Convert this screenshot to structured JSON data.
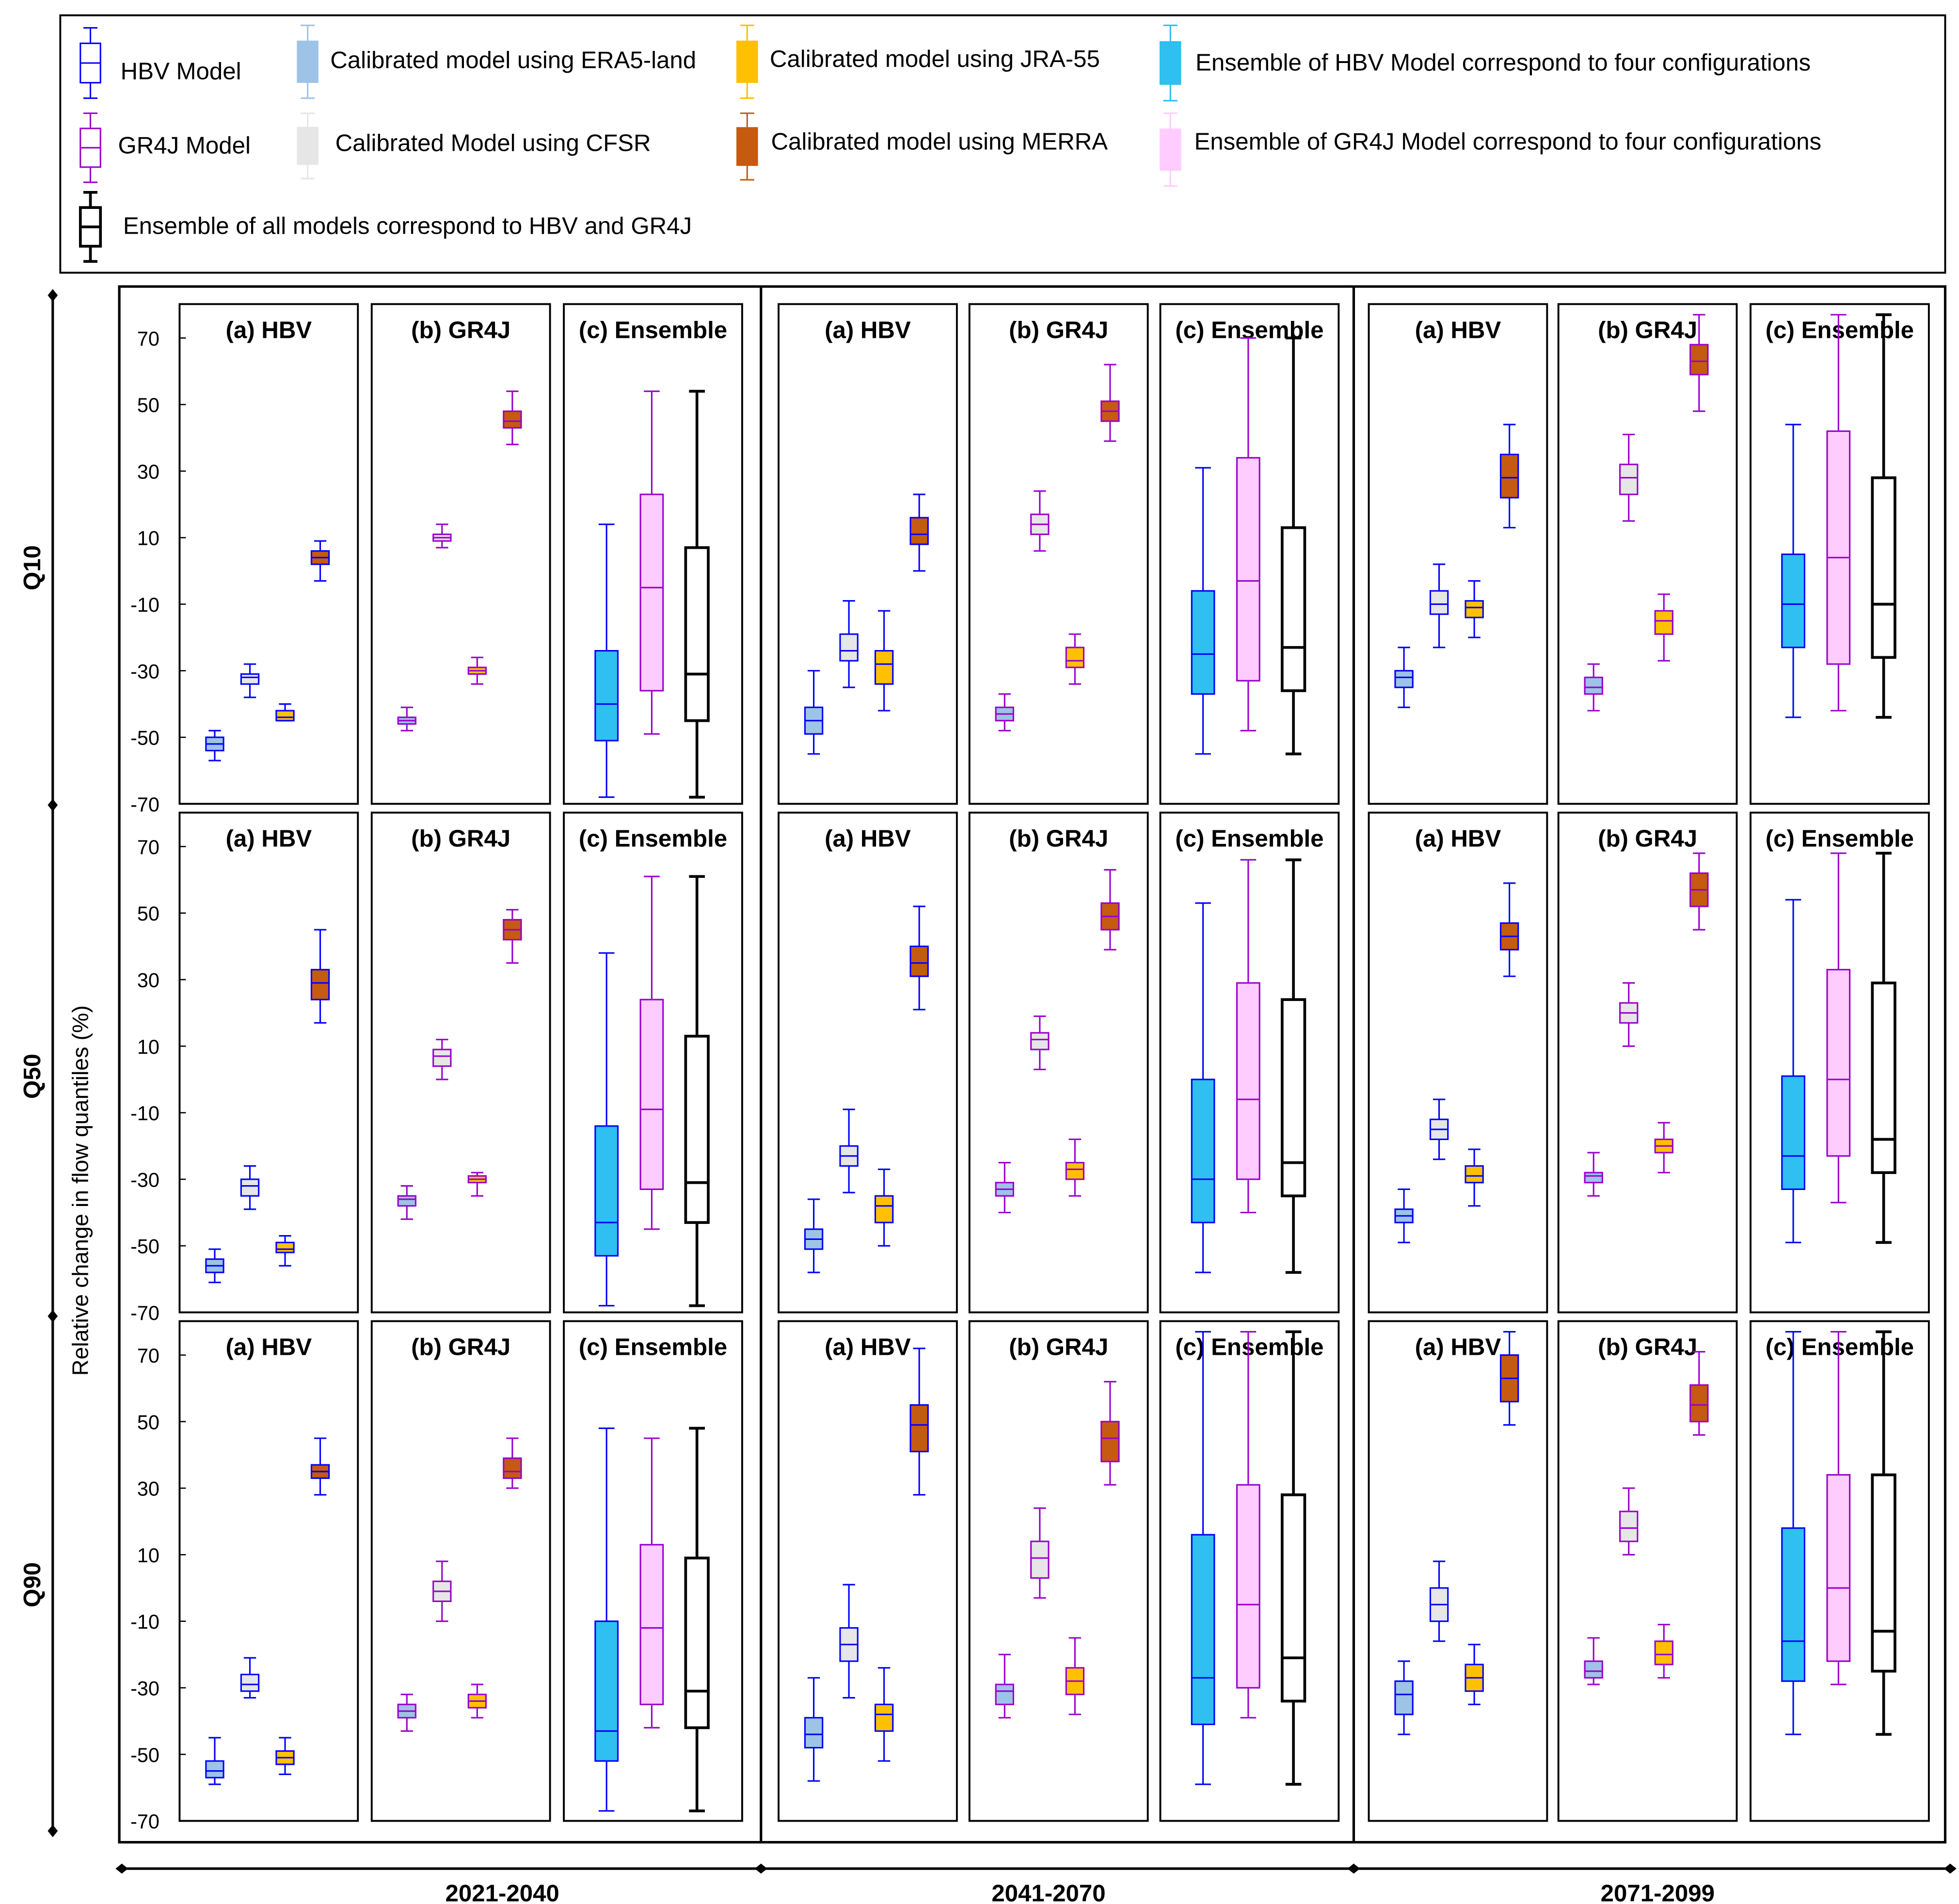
{
  "legend": {
    "items": [
      {
        "label": "HBV Model",
        "kind": "hbv"
      },
      {
        "label": "Calibrated model using ERA5-land",
        "kind": "era5"
      },
      {
        "label": "Calibrated model using JRA-55",
        "kind": "jra"
      },
      {
        "label": "Ensemble of HBV Model correspond to four configurations",
        "kind": "ensHBV"
      },
      {
        "label": "GR4J Model",
        "kind": "gr4j"
      },
      {
        "label": "Calibrated Model using CFSR",
        "kind": "cfsr"
      },
      {
        "label": "Calibrated model using MERRA",
        "kind": "merra"
      },
      {
        "label": "Ensemble of GR4J Model correspond to four configurations",
        "kind": "ensGR4J"
      },
      {
        "label": "Ensemble of all models correspond to HBV and GR4J",
        "kind": "ensAll"
      }
    ]
  },
  "colors": {
    "hbv": "#0000ff",
    "gr4j": "#9900cc",
    "era5": "#9dc3e6",
    "cfsr": "#e6e6e6",
    "jra": "#ffc000",
    "merra": "#c55a11",
    "ensHBV": "#2fbff0",
    "ensGR4J": "#ffccff",
    "ensAll": "#ffffff",
    "ensAllStroke": "#000000"
  },
  "chart_data": {
    "type": "box",
    "ylabel": "Relative change in flow quantiles (%)",
    "ylim": [
      -70,
      70
    ],
    "yticks": [
      70,
      50,
      30,
      10,
      -10,
      -30,
      -50,
      -70
    ],
    "quantiles": [
      "Q10",
      "Q50",
      "Q90"
    ],
    "periods": [
      "2021-2040",
      "2041-2070",
      "2071-2099"
    ],
    "panel_titles": [
      "(a) HBV",
      "(b) GR4J",
      "(c) Ensemble"
    ],
    "model_series": [
      "ERA5-land",
      "CFSR",
      "JRA-55",
      "MERRA"
    ],
    "ensemble_series": [
      "HBV ensemble",
      "GR4J ensemble",
      "All models ensemble"
    ],
    "stats_order": [
      "min",
      "q1",
      "median",
      "q3",
      "max"
    ],
    "data": {
      "Q10": {
        "2021-2040": {
          "HBV": [
            [
              -57,
              -54,
              -52,
              -50,
              -48
            ],
            [
              -38,
              -34,
              -32,
              -31,
              -28
            ],
            [
              -45,
              -45,
              -44,
              -42,
              -40
            ],
            [
              -3,
              2,
              4,
              6,
              9
            ]
          ],
          "GR4J": [
            [
              -48,
              -46,
              -45,
              -44,
              -41
            ],
            [
              7,
              9,
              10,
              11,
              14
            ],
            [
              -34,
              -31,
              -30,
              -29,
              -26
            ],
            [
              38,
              43,
              45,
              48,
              54
            ]
          ],
          "Ensemble": [
            [
              -68,
              -51,
              -40,
              -24,
              14
            ],
            [
              -49,
              -36,
              -5,
              23,
              54
            ],
            [
              -68,
              -45,
              -31,
              7,
              54
            ]
          ]
        },
        "2041-2070": {
          "HBV": [
            [
              -55,
              -49,
              -45,
              -41,
              -30
            ],
            [
              -35,
              -27,
              -24,
              -19,
              -9
            ],
            [
              -42,
              -34,
              -28,
              -24,
              -12
            ],
            [
              0,
              8,
              11,
              16,
              23
            ]
          ],
          "GR4J": [
            [
              -48,
              -45,
              -43,
              -41,
              -37
            ],
            [
              6,
              11,
              14,
              17,
              24
            ],
            [
              -34,
              -29,
              -27,
              -23,
              -19
            ],
            [
              39,
              45,
              48,
              51,
              62
            ]
          ],
          "Ensemble": [
            [
              -55,
              -37,
              -25,
              -6,
              31
            ],
            [
              -48,
              -33,
              -3,
              34,
              70
            ],
            [
              -55,
              -36,
              -23,
              13,
              70
            ]
          ]
        },
        "2071-2099": {
          "HBV": [
            [
              -41,
              -35,
              -32,
              -30,
              -23
            ],
            [
              -23,
              -13,
              -10,
              -6,
              2
            ],
            [
              -20,
              -14,
              -11,
              -9,
              -3
            ],
            [
              13,
              22,
              28,
              35,
              44
            ]
          ],
          "GR4J": [
            [
              -42,
              -37,
              -35,
              -32,
              -28
            ],
            [
              15,
              23,
              28,
              32,
              41
            ],
            [
              -27,
              -19,
              -15,
              -12,
              -7
            ],
            [
              48,
              59,
              63,
              68,
              77
            ]
          ],
          "Ensemble": [
            [
              -44,
              -23,
              -10,
              5,
              44
            ],
            [
              -42,
              -28,
              4,
              42,
              77
            ],
            [
              -44,
              -26,
              -10,
              28,
              77
            ]
          ]
        }
      },
      "Q50": {
        "2021-2040": {
          "HBV": [
            [
              -61,
              -58,
              -56,
              -54,
              -51
            ],
            [
              -39,
              -35,
              -32,
              -30,
              -26
            ],
            [
              -56,
              -52,
              -51,
              -49,
              -47
            ],
            [
              17,
              24,
              29,
              33,
              45
            ]
          ],
          "GR4J": [
            [
              -42,
              -38,
              -36,
              -35,
              -32
            ],
            [
              0,
              4,
              7,
              9,
              12
            ],
            [
              -35,
              -31,
              -30,
              -29,
              -28
            ],
            [
              35,
              42,
              45,
              48,
              51
            ]
          ],
          "Ensemble": [
            [
              -68,
              -53,
              -43,
              -14,
              38
            ],
            [
              -45,
              -33,
              -9,
              24,
              61
            ],
            [
              -68,
              -43,
              -31,
              13,
              61
            ]
          ]
        },
        "2041-2070": {
          "HBV": [
            [
              -58,
              -51,
              -48,
              -45,
              -36
            ],
            [
              -34,
              -26,
              -23,
              -20,
              -9
            ],
            [
              -50,
              -43,
              -38,
              -35,
              -27
            ],
            [
              21,
              31,
              35,
              40,
              52
            ]
          ],
          "GR4J": [
            [
              -40,
              -35,
              -33,
              -31,
              -25
            ],
            [
              3,
              9,
              12,
              14,
              19
            ],
            [
              -35,
              -30,
              -27,
              -25,
              -18
            ],
            [
              39,
              45,
              49,
              53,
              63
            ]
          ],
          "Ensemble": [
            [
              -58,
              -43,
              -30,
              0,
              53
            ],
            [
              -40,
              -30,
              -6,
              29,
              66
            ],
            [
              -58,
              -35,
              -25,
              24,
              66
            ]
          ]
        },
        "2071-2099": {
          "HBV": [
            [
              -49,
              -43,
              -41,
              -39,
              -33
            ],
            [
              -24,
              -18,
              -15,
              -12,
              -6
            ],
            [
              -38,
              -31,
              -29,
              -26,
              -21
            ],
            [
              31,
              39,
              43,
              47,
              59
            ]
          ],
          "GR4J": [
            [
              -35,
              -31,
              -29,
              -28,
              -22
            ],
            [
              10,
              17,
              20,
              23,
              29
            ],
            [
              -28,
              -22,
              -20,
              -18,
              -13
            ],
            [
              45,
              52,
              57,
              62,
              68
            ]
          ],
          "Ensemble": [
            [
              -49,
              -33,
              -23,
              1,
              54
            ],
            [
              -37,
              -23,
              0,
              33,
              68
            ],
            [
              -49,
              -28,
              -18,
              29,
              68
            ]
          ]
        }
      },
      "Q90": {
        "2021-2040": {
          "HBV": [
            [
              -59,
              -57,
              -55,
              -52,
              -45
            ],
            [
              -33,
              -31,
              -29,
              -26,
              -21
            ],
            [
              -56,
              -53,
              -51,
              -49,
              -45
            ],
            [
              28,
              33,
              35,
              37,
              45
            ]
          ],
          "GR4J": [
            [
              -43,
              -39,
              -37,
              -35,
              -32
            ],
            [
              -10,
              -4,
              -1,
              2,
              8
            ],
            [
              -39,
              -36,
              -34,
              -32,
              -29
            ],
            [
              30,
              33,
              35,
              39,
              45
            ]
          ],
          "Ensemble": [
            [
              -67,
              -52,
              -43,
              -10,
              48
            ],
            [
              -42,
              -35,
              -12,
              13,
              45
            ],
            [
              -67,
              -42,
              -31,
              9,
              48
            ]
          ]
        },
        "2041-2070": {
          "HBV": [
            [
              -58,
              -48,
              -44,
              -39,
              -27
            ],
            [
              -33,
              -22,
              -17,
              -12,
              1
            ],
            [
              -52,
              -43,
              -38,
              -35,
              -24
            ],
            [
              28,
              41,
              49,
              55,
              72
            ]
          ],
          "GR4J": [
            [
              -39,
              -35,
              -31,
              -29,
              -20
            ],
            [
              -3,
              3,
              9,
              14,
              24
            ],
            [
              -38,
              -32,
              -28,
              -24,
              -15
            ],
            [
              31,
              38,
              45,
              50,
              62
            ]
          ],
          "Ensemble": [
            [
              -59,
              -41,
              -27,
              16,
              77
            ],
            [
              -39,
              -30,
              -5,
              31,
              77
            ],
            [
              -59,
              -34,
              -21,
              28,
              77
            ]
          ]
        },
        "2071-2099": {
          "HBV": [
            [
              -44,
              -38,
              -32,
              -28,
              -22
            ],
            [
              -16,
              -10,
              -5,
              0,
              8
            ],
            [
              -35,
              -31,
              -27,
              -23,
              -17
            ],
            [
              49,
              56,
              63,
              70,
              77
            ]
          ],
          "GR4J": [
            [
              -29,
              -27,
              -25,
              -22,
              -15
            ],
            [
              10,
              14,
              18,
              23,
              30
            ],
            [
              -27,
              -23,
              -20,
              -16,
              -11
            ],
            [
              46,
              50,
              55,
              61,
              71
            ]
          ],
          "Ensemble": [
            [
              -44,
              -28,
              -16,
              18,
              77
            ],
            [
              -29,
              -22,
              0,
              34,
              77
            ],
            [
              -44,
              -25,
              -13,
              34,
              77
            ]
          ]
        }
      }
    }
  }
}
